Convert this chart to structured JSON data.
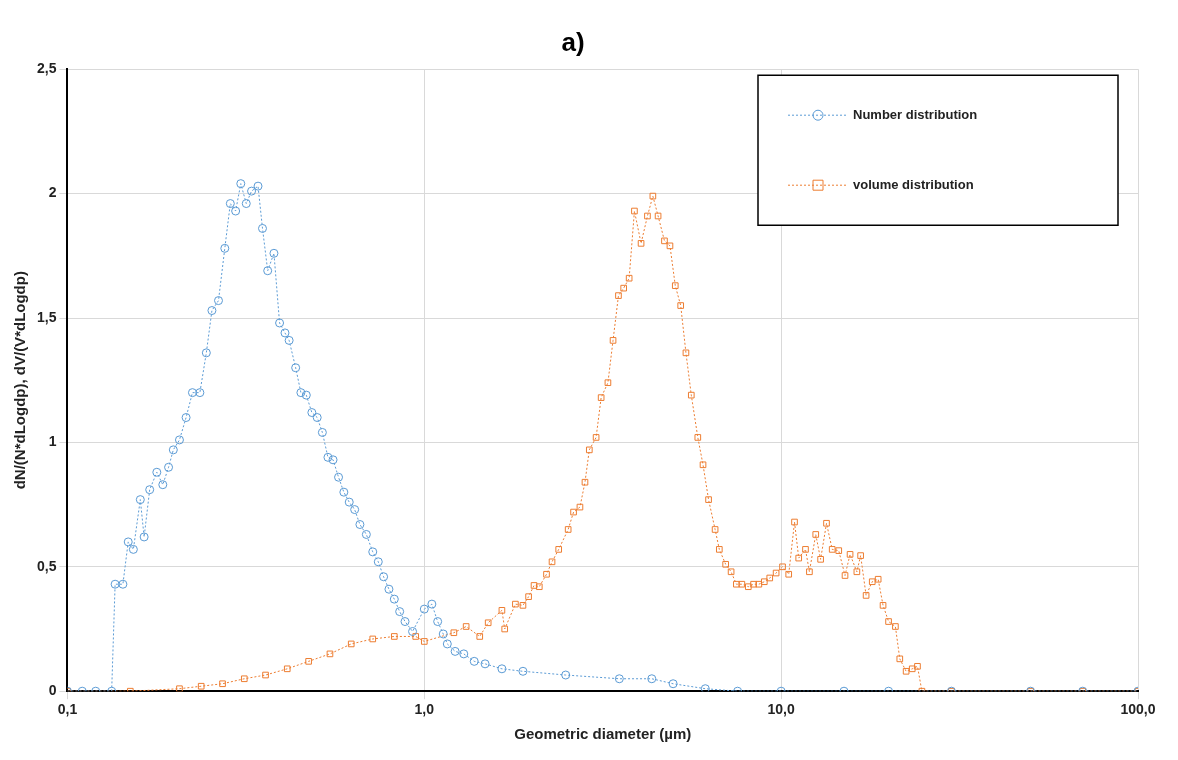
{
  "chart_data": {
    "type": "line",
    "title": "a)",
    "xlabel": "Geometric diameter (µm)",
    "ylabel": "dN/(N*dLogdp), dV/(V*dLogdp)",
    "log": "x",
    "xlim": [
      0.1,
      100
    ],
    "xticks": [
      {
        "value": 0.1,
        "label": "0,1"
      },
      {
        "value": 1,
        "label": "1,0"
      },
      {
        "value": 10,
        "label": "10,0"
      },
      {
        "value": 100,
        "label": "100,0"
      }
    ],
    "ylim": [
      0,
      2.5
    ],
    "yticks": [
      0,
      {
        "value": 0.5,
        "label": "0,5"
      },
      1,
      {
        "value": 1.5,
        "label": "1,5"
      },
      2,
      {
        "value": 2.5,
        "label": "2,5"
      }
    ],
    "grid": true,
    "legend": "top right",
    "line_style": "dotted",
    "series": [
      {
        "name": "Number distribution",
        "color": "#5b9bd5",
        "marker": "circle",
        "x": [
          0.1,
          0.11,
          0.12,
          0.133,
          0.136,
          0.143,
          0.148,
          0.153,
          0.16,
          0.164,
          0.17,
          0.178,
          0.185,
          0.192,
          0.198,
          0.206,
          0.215,
          0.224,
          0.235,
          0.245,
          0.254,
          0.265,
          0.276,
          0.286,
          0.296,
          0.306,
          0.317,
          0.328,
          0.342,
          0.352,
          0.364,
          0.379,
          0.393,
          0.407,
          0.418,
          0.436,
          0.451,
          0.467,
          0.484,
          0.501,
          0.518,
          0.537,
          0.555,
          0.575,
          0.595,
          0.616,
          0.638,
          0.66,
          0.688,
          0.717,
          0.743,
          0.769,
          0.796,
          0.824,
          0.853,
          0.883,
          0.927,
          1.0,
          1.05,
          1.09,
          1.13,
          1.16,
          1.22,
          1.29,
          1.38,
          1.48,
          1.65,
          1.89,
          2.49,
          3.52,
          4.34,
          4.98,
          6.13,
          7.55,
          10,
          15,
          20,
          30,
          50,
          70,
          100
        ],
        "values": [
          0,
          0,
          0,
          0,
          0.43,
          0.43,
          0.6,
          0.57,
          0.77,
          0.62,
          0.81,
          0.88,
          0.83,
          0.9,
          0.97,
          1.01,
          1.1,
          1.2,
          1.2,
          1.36,
          1.53,
          1.57,
          1.78,
          1.96,
          1.93,
          2.04,
          1.96,
          2.01,
          2.03,
          1.86,
          1.69,
          1.76,
          1.48,
          1.44,
          1.41,
          1.3,
          1.2,
          1.19,
          1.12,
          1.1,
          1.04,
          0.94,
          0.93,
          0.86,
          0.8,
          0.76,
          0.73,
          0.67,
          0.63,
          0.56,
          0.52,
          0.46,
          0.41,
          0.37,
          0.32,
          0.28,
          0.24,
          0.33,
          0.35,
          0.28,
          0.23,
          0.19,
          0.16,
          0.15,
          0.12,
          0.11,
          0.09,
          0.08,
          0.065,
          0.05,
          0.05,
          0.03,
          0.01,
          0,
          0,
          0,
          0,
          0,
          0,
          0,
          0
        ]
      },
      {
        "name": "volume distribution",
        "color": "#ed7d31",
        "marker": "square",
        "x": [
          0.1,
          0.15,
          0.206,
          0.237,
          0.272,
          0.313,
          0.359,
          0.413,
          0.474,
          0.544,
          0.624,
          0.717,
          0.824,
          0.946,
          1.0,
          1.21,
          1.31,
          1.43,
          1.51,
          1.65,
          1.68,
          1.8,
          1.89,
          1.96,
          2.03,
          2.1,
          2.2,
          2.28,
          2.38,
          2.53,
          2.62,
          2.73,
          2.82,
          2.9,
          3.03,
          3.13,
          3.27,
          3.38,
          3.5,
          3.62,
          3.75,
          3.88,
          4.05,
          4.22,
          4.37,
          4.52,
          4.71,
          4.88,
          5.05,
          5.23,
          5.41,
          5.6,
          5.84,
          6.04,
          6.26,
          6.53,
          6.71,
          6.99,
          7.24,
          7.49,
          7.76,
          8.09,
          8.37,
          8.66,
          8.97,
          9.29,
          9.68,
          10.09,
          10.5,
          10.9,
          11.2,
          11.7,
          12.0,
          12.5,
          12.9,
          13.4,
          13.9,
          14.5,
          15.1,
          15.6,
          16.3,
          16.7,
          17.3,
          18.0,
          18.7,
          19.3,
          20.0,
          20.9,
          21.5,
          22.4,
          23.3,
          24.1,
          24.8,
          30,
          50,
          70,
          100
        ],
        "values": [
          0,
          0,
          0.01,
          0.02,
          0.03,
          0.05,
          0.065,
          0.09,
          0.12,
          0.15,
          0.19,
          0.21,
          0.22,
          0.22,
          0.2,
          0.235,
          0.26,
          0.22,
          0.275,
          0.325,
          0.25,
          0.35,
          0.345,
          0.38,
          0.425,
          0.42,
          0.47,
          0.52,
          0.57,
          0.65,
          0.72,
          0.74,
          0.84,
          0.97,
          1.02,
          1.18,
          1.24,
          1.41,
          1.59,
          1.62,
          1.66,
          1.93,
          1.8,
          1.91,
          1.99,
          1.91,
          1.81,
          1.79,
          1.63,
          1.55,
          1.36,
          1.19,
          1.02,
          0.91,
          0.77,
          0.65,
          0.57,
          0.51,
          0.48,
          0.43,
          0.43,
          0.42,
          0.43,
          0.43,
          0.44,
          0.455,
          0.475,
          0.5,
          0.47,
          0.68,
          0.535,
          0.57,
          0.48,
          0.63,
          0.53,
          0.675,
          0.57,
          0.565,
          0.465,
          0.55,
          0.48,
          0.545,
          0.385,
          0.44,
          0.45,
          0.345,
          0.28,
          0.26,
          0.13,
          0.08,
          0.09,
          0.1,
          0,
          0,
          0,
          0,
          0
        ]
      }
    ]
  }
}
